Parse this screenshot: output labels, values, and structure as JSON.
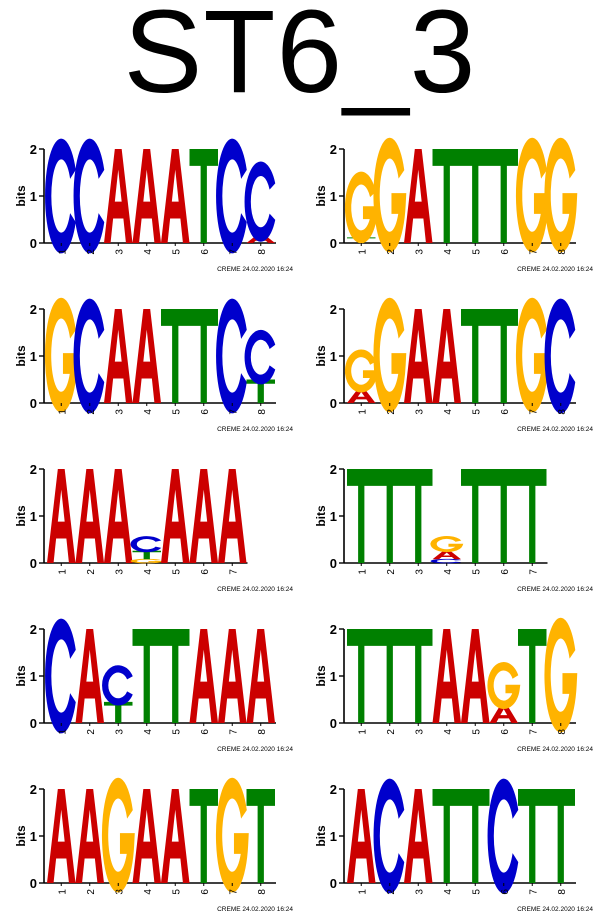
{
  "title": "ST6_3",
  "colors": {
    "A": "#cc0000",
    "C": "#0000cc",
    "G": "#ffb300",
    "T": "#008000"
  },
  "logos": [
    {
      "name": "logo-1",
      "y_label": "bits",
      "y_ticks": [
        "0",
        "1",
        "2"
      ],
      "footer": "CREME 24.02.2020 16:24",
      "positions": [
        [
          {
            "l": "C",
            "h": 2.0
          }
        ],
        [
          {
            "l": "C",
            "h": 2.0
          }
        ],
        [
          {
            "l": "A",
            "h": 2.0
          }
        ],
        [
          {
            "l": "A",
            "h": 2.0
          }
        ],
        [
          {
            "l": "A",
            "h": 2.0
          }
        ],
        [
          {
            "l": "T",
            "h": 2.0
          }
        ],
        [
          {
            "l": "C",
            "h": 2.0
          }
        ],
        [
          {
            "l": "A",
            "h": 0.18
          },
          {
            "l": "C",
            "h": 1.4
          }
        ]
      ]
    },
    {
      "name": "logo-2",
      "y_label": "bits",
      "y_ticks": [
        "0",
        "1",
        "2"
      ],
      "footer": "CREME 24.02.2020 16:24",
      "positions": [
        [
          {
            "l": "T",
            "h": 0.12
          },
          {
            "l": "G",
            "h": 1.25
          }
        ],
        [
          {
            "l": "G",
            "h": 2.0
          }
        ],
        [
          {
            "l": "A",
            "h": 2.0
          }
        ],
        [
          {
            "l": "T",
            "h": 2.0
          }
        ],
        [
          {
            "l": "T",
            "h": 2.0
          }
        ],
        [
          {
            "l": "T",
            "h": 2.0
          }
        ],
        [
          {
            "l": "G",
            "h": 2.0
          }
        ],
        [
          {
            "l": "G",
            "h": 2.0
          }
        ]
      ]
    },
    {
      "name": "logo-3",
      "y_label": "bits",
      "y_ticks": [
        "0",
        "1",
        "2"
      ],
      "footer": "CREME 24.02.2020 16:24",
      "positions": [
        [
          {
            "l": "G",
            "h": 2.0
          }
        ],
        [
          {
            "l": "C",
            "h": 2.0
          }
        ],
        [
          {
            "l": "A",
            "h": 2.0
          }
        ],
        [
          {
            "l": "A",
            "h": 2.0
          }
        ],
        [
          {
            "l": "T",
            "h": 2.0
          }
        ],
        [
          {
            "l": "T",
            "h": 2.0
          }
        ],
        [
          {
            "l": "C",
            "h": 2.0
          }
        ],
        [
          {
            "l": "T",
            "h": 0.5
          },
          {
            "l": "C",
            "h": 0.95
          }
        ]
      ]
    },
    {
      "name": "logo-4",
      "y_label": "bits",
      "y_ticks": [
        "0",
        "1",
        "2"
      ],
      "footer": "CREME 24.02.2020 16:24",
      "positions": [
        [
          {
            "l": "A",
            "h": 0.3
          },
          {
            "l": "G",
            "h": 0.75
          }
        ],
        [
          {
            "l": "G",
            "h": 2.0
          }
        ],
        [
          {
            "l": "A",
            "h": 2.0
          }
        ],
        [
          {
            "l": "A",
            "h": 2.0
          }
        ],
        [
          {
            "l": "T",
            "h": 2.0
          }
        ],
        [
          {
            "l": "T",
            "h": 2.0
          }
        ],
        [
          {
            "l": "G",
            "h": 2.0
          }
        ],
        [
          {
            "l": "C",
            "h": 2.0
          }
        ]
      ]
    },
    {
      "name": "logo-5",
      "y_label": "bits",
      "y_ticks": [
        "0",
        "1",
        "2"
      ],
      "footer": "CREME 24.02.2020 16:24",
      "positions": [
        [
          {
            "l": "A",
            "h": 2.0
          }
        ],
        [
          {
            "l": "A",
            "h": 2.0
          }
        ],
        [
          {
            "l": "A",
            "h": 2.0
          }
        ],
        [
          {
            "l": "G",
            "h": 0.08
          },
          {
            "l": "T",
            "h": 0.18
          },
          {
            "l": "C",
            "h": 0.28
          }
        ],
        [
          {
            "l": "A",
            "h": 2.0
          }
        ],
        [
          {
            "l": "A",
            "h": 2.0
          }
        ],
        [
          {
            "l": "A",
            "h": 2.0
          }
        ]
      ]
    },
    {
      "name": "logo-6",
      "y_label": "bits",
      "y_ticks": [
        "0",
        "1",
        "2"
      ],
      "footer": "CREME 24.02.2020 16:24",
      "positions": [
        [
          {
            "l": "T",
            "h": 2.0
          }
        ],
        [
          {
            "l": "T",
            "h": 2.0
          }
        ],
        [
          {
            "l": "T",
            "h": 2.0
          }
        ],
        [
          {
            "l": "C",
            "h": 0.08
          },
          {
            "l": "A",
            "h": 0.18
          },
          {
            "l": "G",
            "h": 0.28
          }
        ],
        [
          {
            "l": "T",
            "h": 2.0
          }
        ],
        [
          {
            "l": "T",
            "h": 2.0
          }
        ],
        [
          {
            "l": "T",
            "h": 2.0
          }
        ]
      ]
    },
    {
      "name": "logo-7",
      "y_label": "bits",
      "y_ticks": [
        "0",
        "1",
        "2"
      ],
      "footer": "CREME 24.02.2020 16:24",
      "positions": [
        [
          {
            "l": "C",
            "h": 2.0
          }
        ],
        [
          {
            "l": "A",
            "h": 2.0
          }
        ],
        [
          {
            "l": "T",
            "h": 0.45
          },
          {
            "l": "C",
            "h": 0.7
          }
        ],
        [
          {
            "l": "T",
            "h": 2.0
          }
        ],
        [
          {
            "l": "T",
            "h": 2.0
          }
        ],
        [
          {
            "l": "A",
            "h": 2.0
          }
        ],
        [
          {
            "l": "A",
            "h": 2.0
          }
        ],
        [
          {
            "l": "A",
            "h": 2.0
          }
        ]
      ]
    },
    {
      "name": "logo-8",
      "y_label": "bits",
      "y_ticks": [
        "0",
        "1",
        "2"
      ],
      "footer": "CREME 24.02.2020 16:24",
      "positions": [
        [
          {
            "l": "T",
            "h": 2.0
          }
        ],
        [
          {
            "l": "T",
            "h": 2.0
          }
        ],
        [
          {
            "l": "T",
            "h": 2.0
          }
        ],
        [
          {
            "l": "A",
            "h": 2.0
          }
        ],
        [
          {
            "l": "A",
            "h": 2.0
          }
        ],
        [
          {
            "l": "A",
            "h": 0.38
          },
          {
            "l": "G",
            "h": 0.82
          }
        ],
        [
          {
            "l": "T",
            "h": 2.0
          }
        ],
        [
          {
            "l": "G",
            "h": 2.0
          }
        ]
      ]
    },
    {
      "name": "logo-9",
      "y_label": "bits",
      "y_ticks": [
        "0",
        "1",
        "2"
      ],
      "footer": "CREME 24.02.2020 16:24",
      "positions": [
        [
          {
            "l": "A",
            "h": 2.0
          }
        ],
        [
          {
            "l": "A",
            "h": 2.0
          }
        ],
        [
          {
            "l": "G",
            "h": 2.0
          }
        ],
        [
          {
            "l": "A",
            "h": 2.0
          }
        ],
        [
          {
            "l": "A",
            "h": 2.0
          }
        ],
        [
          {
            "l": "T",
            "h": 2.0
          }
        ],
        [
          {
            "l": "G",
            "h": 2.0
          }
        ],
        [
          {
            "l": "T",
            "h": 2.0
          }
        ]
      ]
    },
    {
      "name": "logo-10",
      "y_label": "bits",
      "y_ticks": [
        "0",
        "1",
        "2"
      ],
      "footer": "CREME 24.02.2020 16:24",
      "positions": [
        [
          {
            "l": "A",
            "h": 2.0
          }
        ],
        [
          {
            "l": "C",
            "h": 2.0
          }
        ],
        [
          {
            "l": "A",
            "h": 2.0
          }
        ],
        [
          {
            "l": "T",
            "h": 2.0
          }
        ],
        [
          {
            "l": "T",
            "h": 2.0
          }
        ],
        [
          {
            "l": "C",
            "h": 2.0
          }
        ],
        [
          {
            "l": "T",
            "h": 2.0
          }
        ],
        [
          {
            "l": "T",
            "h": 2.0
          }
        ]
      ]
    }
  ]
}
